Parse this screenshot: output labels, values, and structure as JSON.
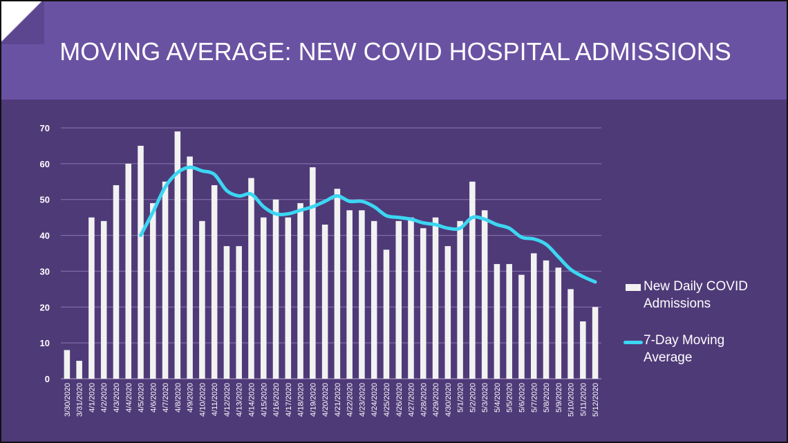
{
  "header": {
    "title": "MOVING AVERAGE: NEW COVID HOSPITAL ADMISSIONS"
  },
  "colors": {
    "header_bg": "#6a52a3",
    "chart_bg": "#4f3a78",
    "bars": "#f2f2f2",
    "moving_average": "#3cd6f2",
    "grid": "#8a78b0"
  },
  "legend": {
    "bar_label_line1": "New Daily COVID",
    "bar_label_line2": "Admissions",
    "line_label_line1": "7-Day Moving",
    "line_label_line2": "Average"
  },
  "chart_data": {
    "type": "bar",
    "title": "MOVING AVERAGE: NEW COVID HOSPITAL ADMISSIONS",
    "xlabel": "",
    "ylabel": "",
    "ylim": [
      0,
      70
    ],
    "yticks": [
      0,
      10,
      20,
      30,
      40,
      50,
      60,
      70
    ],
    "grid": true,
    "legend_position": "right",
    "categories": [
      "3/30/2020",
      "3/31/2020",
      "4/1/2020",
      "4/2/2020",
      "4/3/2020",
      "4/4/2020",
      "4/5/2020",
      "4/6/2020",
      "4/7/2020",
      "4/8/2020",
      "4/9/2020",
      "4/10/2020",
      "4/11/2020",
      "4/12/2020",
      "4/13/2020",
      "4/14/2020",
      "4/15/2020",
      "4/16/2020",
      "4/17/2020",
      "4/18/2020",
      "4/19/2020",
      "4/20/2020",
      "4/21/2020",
      "4/22/2020",
      "4/23/2020",
      "4/24/2020",
      "4/25/2020",
      "4/26/2020",
      "4/27/2020",
      "4/28/2020",
      "4/29/2020",
      "4/30/2020",
      "5/1/2020",
      "5/2/2020",
      "5/3/2020",
      "5/4/2020",
      "5/5/2020",
      "5/6/2020",
      "5/7/2020",
      "5/8/2020",
      "5/9/2020",
      "5/10/2020",
      "5/11/2020",
      "5/12/2020"
    ],
    "series": [
      {
        "name": "New Daily COVID Admissions",
        "type": "bar",
        "values": [
          8,
          5,
          45,
          44,
          54,
          60,
          65,
          49,
          55,
          69,
          62,
          44,
          54,
          37,
          37,
          56,
          45,
          50,
          45,
          49,
          59,
          43,
          53,
          47,
          47,
          44,
          36,
          44,
          45,
          42,
          45,
          37,
          44,
          55,
          47,
          32,
          32,
          29,
          35,
          33,
          31,
          25,
          16,
          20
        ]
      },
      {
        "name": "7-Day Moving Average",
        "type": "line",
        "values": [
          null,
          null,
          null,
          null,
          null,
          null,
          40,
          46.5,
          53.5,
          57.5,
          59,
          58,
          57,
          52.5,
          51,
          51.5,
          48,
          46,
          46,
          47,
          48,
          49.5,
          51,
          49.5,
          49.5,
          48,
          45.5,
          45,
          44.5,
          43.5,
          43,
          42,
          42,
          45,
          44.5,
          43,
          42,
          39.5,
          39,
          37.5,
          34,
          30.5,
          28.5,
          27
        ]
      }
    ]
  }
}
